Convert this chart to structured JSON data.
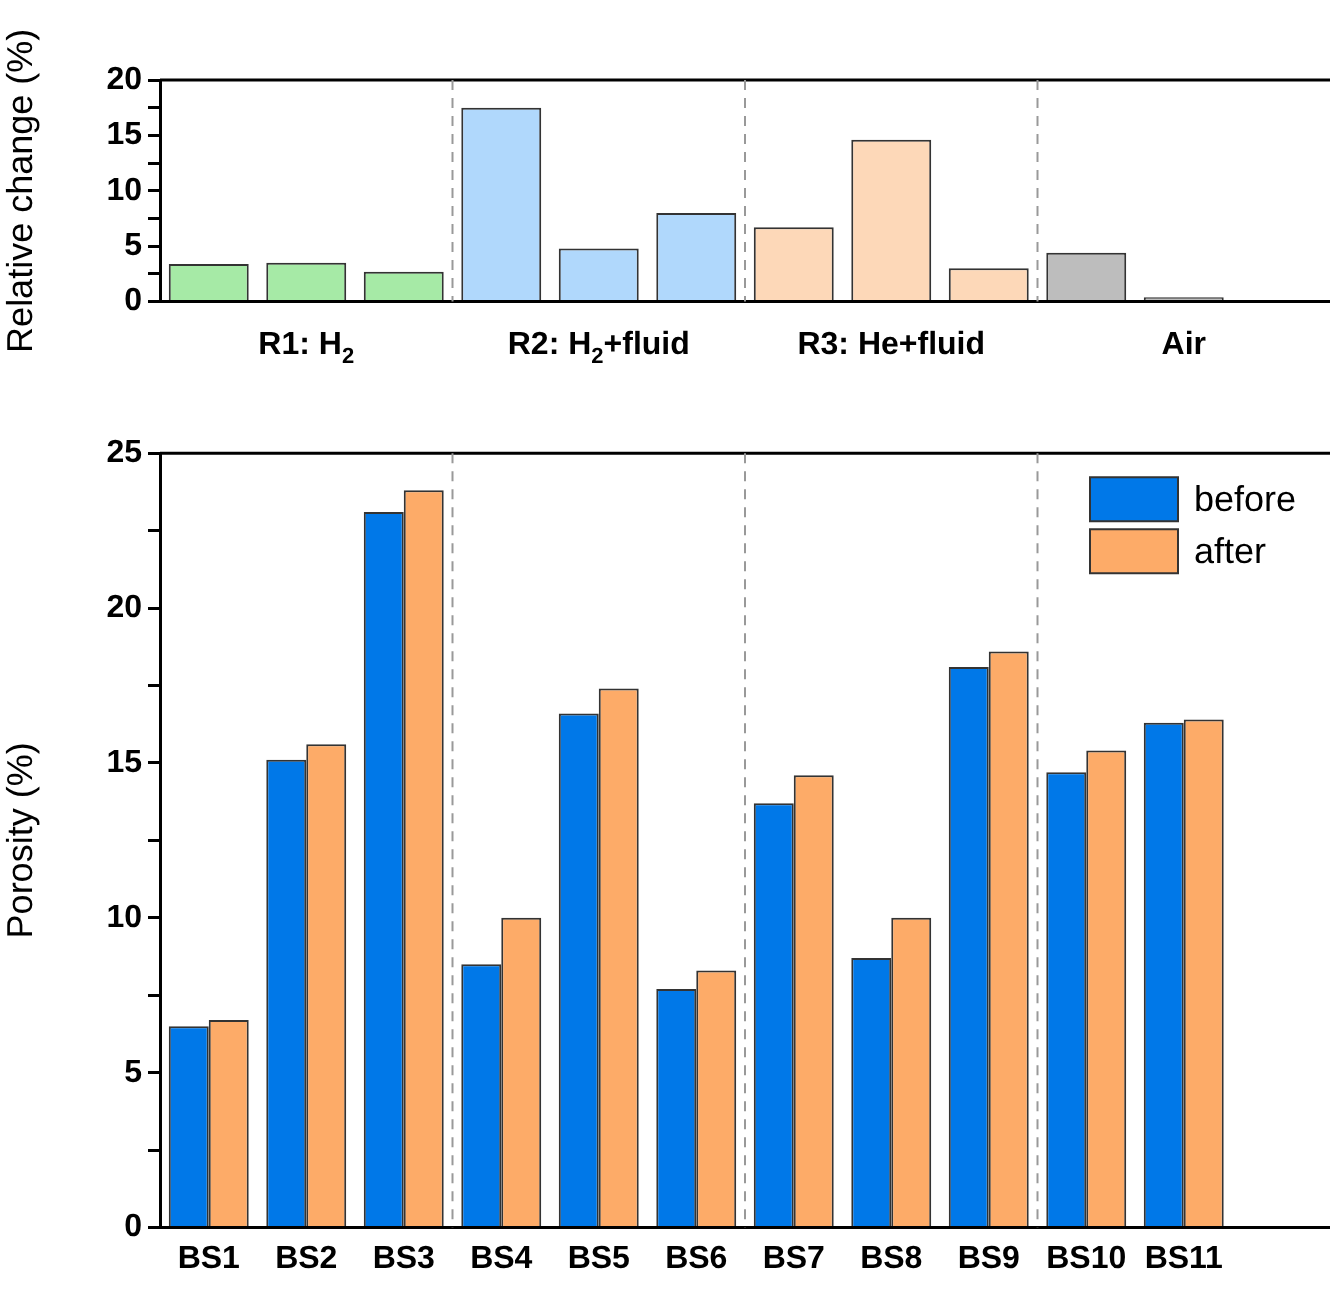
{
  "chart_data": [
    {
      "type": "bar",
      "ylabel": "Relative change (%)",
      "categories": [
        null,
        null,
        null,
        null,
        null,
        null,
        null,
        null,
        null,
        null,
        null,
        null
      ],
      "values": [
        3.4,
        3.5,
        2.7,
        17.5,
        4.8,
        8.0,
        6.7,
        14.6,
        3.0,
        4.4,
        0.4,
        null
      ],
      "colors": [
        "#a6eaa6",
        "#a6eaa6",
        "#a6eaa6",
        "#b0d8fc",
        "#b0d8fc",
        "#b0d8fc",
        "#fdd8b8",
        "#fdd8b8",
        "#fdd8b8",
        "#bdbdbd",
        "#bdbdbd",
        "#bdbdbd"
      ],
      "ylim": [
        0,
        20
      ],
      "yticks": [
        0,
        {
          "value": 2.5,
          "label": null
        },
        5,
        {
          "value": 7.5,
          "label": null
        },
        10,
        {
          "value": 12.5,
          "label": null
        },
        15,
        {
          "value": 17.5,
          "label": null
        },
        20
      ],
      "annotations": [
        "R1: H$_{2}$",
        "R2: H$_{2}$+fluid",
        "R3: He+fluid",
        "Air"
      ],
      "grid": false,
      "legend": false
    },
    {
      "type": "bar",
      "ylabel": "Porosity (%)",
      "categories": [
        "BS1",
        "BS2",
        "BS3",
        "BS4",
        "BS5",
        "BS6",
        "BS7",
        "BS8",
        "BS9",
        "BS10",
        "BS11",
        null
      ],
      "series": [
        {
          "name": "before",
          "color": "#0078e8",
          "values": [
            6.5,
            15.1,
            23.1,
            8.5,
            16.6,
            7.7,
            13.7,
            8.7,
            18.1,
            14.7,
            16.3,
            null
          ]
        },
        {
          "name": "after",
          "color": "#fdab68",
          "values": [
            6.7,
            15.6,
            23.8,
            10.0,
            17.4,
            8.3,
            14.6,
            10.0,
            18.6,
            15.4,
            16.4,
            null
          ]
        }
      ],
      "ylim": [
        0,
        25
      ],
      "yticks": [
        0,
        {
          "value": 2.5,
          "label": null
        },
        5,
        {
          "value": 7.5,
          "label": null
        },
        10,
        {
          "value": 12.5,
          "label": null
        },
        15,
        {
          "value": 17.5,
          "label": null
        },
        20,
        {
          "value": 22.5,
          "label": null
        },
        25
      ],
      "grid": false,
      "legend": "top right"
    }
  ]
}
